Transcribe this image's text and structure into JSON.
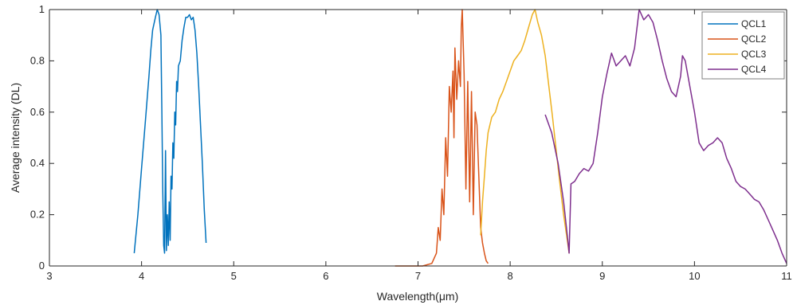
{
  "chart_data": {
    "type": "line",
    "title": "",
    "xlabel": "Wavelength(μm)",
    "ylabel": "Average intensity (DL)",
    "xlim": [
      3,
      11
    ],
    "ylim": [
      0,
      1
    ],
    "xticks": [
      "3",
      "4",
      "5",
      "6",
      "7",
      "8",
      "9",
      "10",
      "11"
    ],
    "yticks": [
      "0",
      "0.2",
      "0.4",
      "0.6",
      "0.8",
      "1"
    ],
    "grid": false,
    "legend_position": "top-right",
    "series": [
      {
        "name": "QCL1",
        "color": "#0072BD",
        "points": [
          [
            3.92,
            0.05
          ],
          [
            3.96,
            0.2
          ],
          [
            4.0,
            0.38
          ],
          [
            4.04,
            0.56
          ],
          [
            4.08,
            0.74
          ],
          [
            4.1,
            0.84
          ],
          [
            4.12,
            0.92
          ],
          [
            4.15,
            0.97
          ],
          [
            4.17,
            1.0
          ],
          [
            4.19,
            0.98
          ],
          [
            4.21,
            0.9
          ],
          [
            4.22,
            0.6
          ],
          [
            4.23,
            0.3
          ],
          [
            4.24,
            0.08
          ],
          [
            4.25,
            0.05
          ],
          [
            4.26,
            0.45
          ],
          [
            4.27,
            0.06
          ],
          [
            4.28,
            0.2
          ],
          [
            4.29,
            0.08
          ],
          [
            4.3,
            0.25
          ],
          [
            4.31,
            0.1
          ],
          [
            4.32,
            0.35
          ],
          [
            4.33,
            0.3
          ],
          [
            4.34,
            0.48
          ],
          [
            4.35,
            0.42
          ],
          [
            4.36,
            0.6
          ],
          [
            4.37,
            0.55
          ],
          [
            4.38,
            0.72
          ],
          [
            4.39,
            0.68
          ],
          [
            4.4,
            0.78
          ],
          [
            4.42,
            0.8
          ],
          [
            4.44,
            0.88
          ],
          [
            4.46,
            0.93
          ],
          [
            4.48,
            0.97
          ],
          [
            4.5,
            0.97
          ],
          [
            4.52,
            0.98
          ],
          [
            4.54,
            0.96
          ],
          [
            4.56,
            0.97
          ],
          [
            4.58,
            0.92
          ],
          [
            4.6,
            0.83
          ],
          [
            4.62,
            0.7
          ],
          [
            4.64,
            0.55
          ],
          [
            4.66,
            0.4
          ],
          [
            4.68,
            0.22
          ],
          [
            4.7,
            0.09
          ]
        ]
      },
      {
        "name": "QCL2",
        "color": "#D95319",
        "points": [
          [
            6.75,
            0.0
          ],
          [
            7.05,
            0.0
          ],
          [
            7.15,
            0.01
          ],
          [
            7.2,
            0.05
          ],
          [
            7.22,
            0.15
          ],
          [
            7.24,
            0.1
          ],
          [
            7.26,
            0.3
          ],
          [
            7.28,
            0.2
          ],
          [
            7.3,
            0.5
          ],
          [
            7.32,
            0.35
          ],
          [
            7.34,
            0.7
          ],
          [
            7.36,
            0.6
          ],
          [
            7.38,
            0.76
          ],
          [
            7.39,
            0.5
          ],
          [
            7.4,
            0.85
          ],
          [
            7.42,
            0.65
          ],
          [
            7.44,
            0.8
          ],
          [
            7.46,
            0.7
          ],
          [
            7.47,
            0.93
          ],
          [
            7.48,
            1.0
          ],
          [
            7.5,
            0.75
          ],
          [
            7.52,
            0.3
          ],
          [
            7.54,
            0.72
          ],
          [
            7.56,
            0.25
          ],
          [
            7.58,
            0.68
          ],
          [
            7.6,
            0.2
          ],
          [
            7.62,
            0.6
          ],
          [
            7.64,
            0.55
          ],
          [
            7.66,
            0.35
          ],
          [
            7.68,
            0.15
          ],
          [
            7.7,
            0.09
          ],
          [
            7.72,
            0.05
          ],
          [
            7.74,
            0.02
          ],
          [
            7.76,
            0.01
          ]
        ]
      },
      {
        "name": "QCL3",
        "color": "#EDB120",
        "points": [
          [
            7.68,
            0.12
          ],
          [
            7.7,
            0.25
          ],
          [
            7.72,
            0.35
          ],
          [
            7.74,
            0.45
          ],
          [
            7.76,
            0.52
          ],
          [
            7.8,
            0.58
          ],
          [
            7.84,
            0.6
          ],
          [
            7.88,
            0.65
          ],
          [
            7.92,
            0.68
          ],
          [
            7.96,
            0.72
          ],
          [
            8.0,
            0.76
          ],
          [
            8.04,
            0.8
          ],
          [
            8.08,
            0.82
          ],
          [
            8.12,
            0.84
          ],
          [
            8.16,
            0.88
          ],
          [
            8.2,
            0.93
          ],
          [
            8.24,
            0.98
          ],
          [
            8.27,
            1.0
          ],
          [
            8.3,
            0.95
          ],
          [
            8.34,
            0.9
          ],
          [
            8.38,
            0.82
          ],
          [
            8.42,
            0.7
          ],
          [
            8.46,
            0.58
          ],
          [
            8.5,
            0.45
          ],
          [
            8.54,
            0.32
          ],
          [
            8.58,
            0.2
          ],
          [
            8.62,
            0.1
          ],
          [
            8.64,
            0.05
          ]
        ]
      },
      {
        "name": "QCL4",
        "color": "#7E2F8E",
        "points": [
          [
            8.38,
            0.59
          ],
          [
            8.45,
            0.52
          ],
          [
            8.52,
            0.4
          ],
          [
            8.58,
            0.25
          ],
          [
            8.62,
            0.12
          ],
          [
            8.64,
            0.05
          ],
          [
            8.66,
            0.32
          ],
          [
            8.7,
            0.33
          ],
          [
            8.75,
            0.36
          ],
          [
            8.8,
            0.38
          ],
          [
            8.85,
            0.37
          ],
          [
            8.9,
            0.4
          ],
          [
            8.95,
            0.52
          ],
          [
            9.0,
            0.66
          ],
          [
            9.05,
            0.75
          ],
          [
            9.1,
            0.83
          ],
          [
            9.15,
            0.78
          ],
          [
            9.2,
            0.8
          ],
          [
            9.25,
            0.82
          ],
          [
            9.3,
            0.78
          ],
          [
            9.35,
            0.85
          ],
          [
            9.4,
            1.0
          ],
          [
            9.45,
            0.96
          ],
          [
            9.5,
            0.98
          ],
          [
            9.55,
            0.95
          ],
          [
            9.6,
            0.88
          ],
          [
            9.65,
            0.8
          ],
          [
            9.7,
            0.73
          ],
          [
            9.75,
            0.68
          ],
          [
            9.8,
            0.66
          ],
          [
            9.85,
            0.74
          ],
          [
            9.87,
            0.82
          ],
          [
            9.9,
            0.8
          ],
          [
            9.95,
            0.7
          ],
          [
            10.0,
            0.6
          ],
          [
            10.05,
            0.48
          ],
          [
            10.1,
            0.45
          ],
          [
            10.15,
            0.47
          ],
          [
            10.2,
            0.48
          ],
          [
            10.25,
            0.5
          ],
          [
            10.3,
            0.48
          ],
          [
            10.35,
            0.42
          ],
          [
            10.4,
            0.38
          ],
          [
            10.45,
            0.33
          ],
          [
            10.5,
            0.31
          ],
          [
            10.55,
            0.3
          ],
          [
            10.6,
            0.28
          ],
          [
            10.65,
            0.26
          ],
          [
            10.7,
            0.25
          ],
          [
            10.75,
            0.22
          ],
          [
            10.8,
            0.18
          ],
          [
            10.85,
            0.14
          ],
          [
            10.9,
            0.1
          ],
          [
            10.95,
            0.05
          ],
          [
            11.0,
            0.01
          ]
        ]
      }
    ]
  }
}
